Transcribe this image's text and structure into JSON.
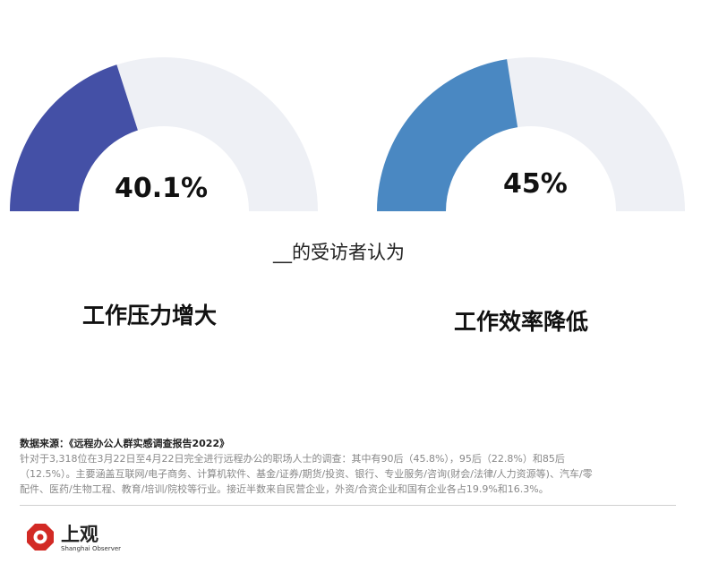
{
  "chart_data": [
    {
      "type": "gauge",
      "value": 40.1,
      "max": 100,
      "label": "40.1%",
      "category": "工作压力增大",
      "color": "#4450a6",
      "track_color": "#eef0f5"
    },
    {
      "type": "gauge",
      "value": 45,
      "max": 100,
      "label": "45%",
      "category": "工作效率降低",
      "color": "#4a88c2",
      "track_color": "#eef0f5"
    }
  ],
  "caption": "__的受访者认为",
  "source": {
    "title": "数据来源：《远程办公人群实感调查报告2022》",
    "lines": [
      "针对于3,318位在3月22日至4月22日完全进行远程办公的职场人士的调查：其中有90后（45.8%），95后（22.8%）和85后",
      "（12.5%）。主要涵盖互联网/电子商务、计算机软件、基金/证券/期货/投资、银行、专业服务/咨询(财会/法律/人力资源等)、汽车/零",
      "配件、医药/生物工程、教育/培训/院校等行业。接近半数来自民营企业，外资/合资企业和国有企业各占19.9%和16.3%。"
    ]
  },
  "logo": {
    "text": "上观",
    "subtext": "Shanghai Observer",
    "color": "#d22a25"
  }
}
